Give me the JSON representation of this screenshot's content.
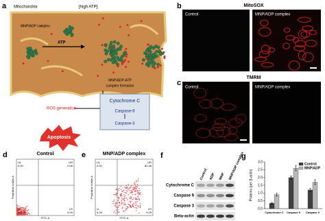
{
  "panel_a": {
    "label": "a",
    "mitochondria": "Mitochondria",
    "high_atp": "[high ATP]",
    "complex": "MNP/ADP complex",
    "atp": "ATP",
    "formation": [
      "MNP/ADP-ATP",
      "complex formation"
    ],
    "ros": "ROS generation",
    "cascade": [
      "Cytochrome C",
      "Caspase-9",
      "Caspase-3"
    ],
    "apoptosis": "Apoptosis"
  },
  "panel_b": {
    "label": "b",
    "title": "MitoSOX",
    "images": [
      "Control",
      "MNP/ADP complex"
    ]
  },
  "panel_c": {
    "label": "c",
    "title": "TMRM",
    "images": [
      "Control",
      "MNP/ADP complex"
    ]
  },
  "panel_d": {
    "label": "d",
    "title": "Control",
    "quadrants": [
      [
        "UL",
        "0.00"
      ],
      [
        "UR",
        "0.06"
      ],
      [
        "LL",
        "100.00"
      ],
      [
        "LR",
        "0.00"
      ]
    ],
    "y_axis": "Propidium Iodide-A",
    "x_axis": "FITC-A"
  },
  "panel_e": {
    "label": "e",
    "title": "MNP/ADP complex",
    "quadrants": [
      [
        "UL",
        "0.02"
      ],
      [
        "UR",
        "82.48"
      ],
      [
        "LL",
        "8.25"
      ],
      [
        "LR",
        "9.25"
      ]
    ],
    "y_axis": "Propidium Iodide-A",
    "x_axis": "FITC-A"
  },
  "panel_f": {
    "label": "f",
    "lanes": [
      "Control",
      "ADP",
      "MNP",
      "MNP/ADP complex"
    ],
    "rows": [
      "Cytochrome C",
      "Caspase 9",
      "Caspase 3",
      "Beta-actin"
    ]
  },
  "chart_data": {
    "type": "bar",
    "label": "g",
    "y_label": "Proteins (per β-actin)",
    "categories": [
      "Cytochrome C",
      "Caspase 9",
      "Caspase 3"
    ],
    "series": [
      {
        "name": "Control",
        "color": "#404040",
        "values": [
          0.35,
          2.0,
          1.2
        ],
        "errors": [
          0.05,
          0.1,
          0.1
        ]
      },
      {
        "name": "MNP/ADP",
        "color": "#b8b8b8",
        "values": [
          0.9,
          2.6,
          1.7
        ],
        "errors": [
          0.08,
          0.15,
          0.15
        ]
      }
    ],
    "ylim": [
      0,
      3
    ],
    "yticks": [
      {
        "value": 0,
        "label": "0.0"
      },
      {
        "value": 0.5,
        "label": "0.5"
      },
      {
        "value": 1,
        "label": "1.0"
      },
      {
        "value": 1.5,
        "label": "1.5"
      },
      {
        "value": 2,
        "label": "2.0"
      },
      {
        "value": 2.5,
        "label": "2.5"
      },
      {
        "value": 3,
        "label": "3.0"
      }
    ],
    "legend": "top-right"
  }
}
